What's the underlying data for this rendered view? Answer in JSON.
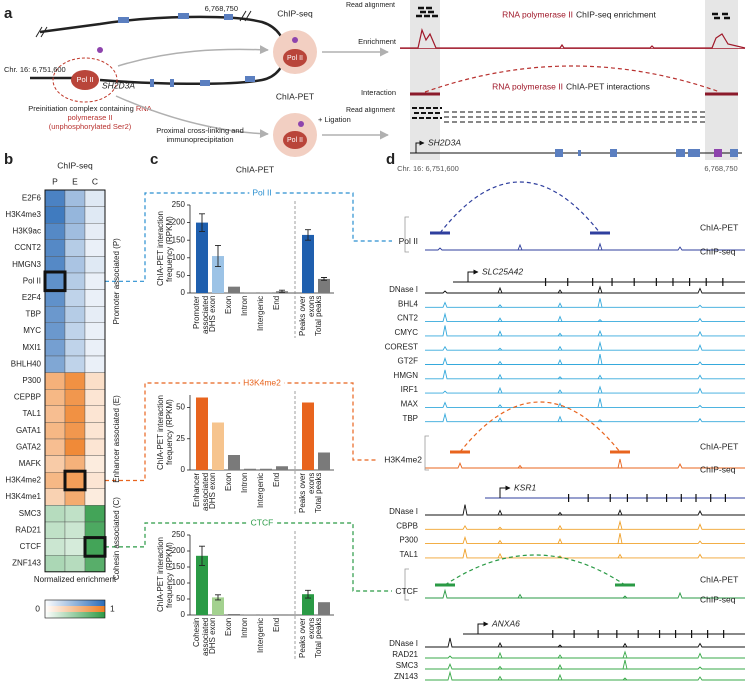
{
  "panel_labels": [
    "a",
    "b",
    "c",
    "d"
  ],
  "panel_a": {
    "coord_end": "6,768,750",
    "coord_start": "Chr. 16: 6,751,600",
    "pol2": "Pol II",
    "gene": "SH2D3A",
    "complex": "Preinitiation complex containing",
    "complex_red": "RNA polymerase II",
    "complex_red2": "(unphosphorylated Ser2)",
    "crosslink": "Proximal cross-linking and immunoprecipitation",
    "chipseq": "ChIP-seq",
    "chiapet": "ChIA-PET",
    "ligation": "+ Ligation",
    "pol2_chip": "Pol II",
    "pol2_chia": "Pol II",
    "track_labels": [
      "Read alignment",
      "Enrichment",
      "Interaction",
      "Read alignment"
    ],
    "chip_title_red": "RNA polymerase II",
    "chip_title": "ChIP-seq enrichment",
    "chia_title_red": "RNA polymerase II",
    "chia_title": "ChIA-PET interactions",
    "gene2": "SH2D3A",
    "coord_start2": "Chr. 16: 6,751,600",
    "coord_end2": "6,768,750"
  },
  "panel_c_title": "ChIA-PET",
  "chart_data": [
    {
      "type": "heatmap",
      "title": "ChIP-seq",
      "columns": [
        "P",
        "E",
        "C"
      ],
      "groups": [
        {
          "name": "Promoter associated (P)",
          "color": "#2b6cb8",
          "rows": [
            "E2F6",
            "H3K4me3",
            "H3K9ac",
            "CCNT2",
            "HMGN3",
            "Pol II",
            "E2F4",
            "TBP",
            "MYC",
            "MXI1",
            "BHLH40"
          ],
          "values": [
            [
              0.85,
              0.45,
              0.15
            ],
            [
              0.9,
              0.5,
              0.15
            ],
            [
              0.8,
              0.45,
              0.12
            ],
            [
              0.8,
              0.35,
              0.1
            ],
            [
              0.8,
              0.4,
              0.15
            ],
            [
              0.75,
              0.35,
              0.1
            ],
            [
              0.75,
              0.3,
              0.1
            ],
            [
              0.7,
              0.35,
              0.12
            ],
            [
              0.7,
              0.3,
              0.1
            ],
            [
              0.65,
              0.3,
              0.1
            ],
            [
              0.6,
              0.3,
              0.1
            ]
          ]
        },
        {
          "name": "Enhancer associated (E)",
          "color": "#ee7d22",
          "rows": [
            "P300",
            "CEPBP",
            "TAL1",
            "GATA1",
            "GATA2",
            "MAFK",
            "H3K4me2",
            "H3K4me1"
          ],
          "values": [
            [
              0.6,
              0.85,
              0.25
            ],
            [
              0.55,
              0.8,
              0.2
            ],
            [
              0.5,
              0.85,
              0.2
            ],
            [
              0.55,
              0.8,
              0.2
            ],
            [
              0.5,
              0.9,
              0.2
            ],
            [
              0.4,
              0.6,
              0.15
            ],
            [
              0.55,
              0.75,
              0.2
            ],
            [
              0.35,
              0.65,
              0.15
            ]
          ]
        },
        {
          "name": "Cohesin associated (C)",
          "color": "#2e9a45",
          "rows": [
            "SMC3",
            "RAD21",
            "CTCF",
            "ZNF143"
          ],
          "values": [
            [
              0.35,
              0.3,
              0.9
            ],
            [
              0.3,
              0.25,
              0.85
            ],
            [
              0.25,
              0.2,
              0.9
            ],
            [
              0.4,
              0.35,
              0.8
            ]
          ]
        }
      ],
      "legend_title": "Normalized enrichment",
      "legend_ticks": [
        0,
        1
      ]
    },
    {
      "type": "bar",
      "title": "Pol II",
      "title_color": "#2a8fd0",
      "ylabel": "ChIA-PET interaction frequency (RPKM)",
      "categories": [
        "Promoter associated",
        "DHS exon",
        "Exon",
        "Intron",
        "Intergenic",
        "End",
        "Peaks over exons",
        "Total peaks"
      ],
      "values": [
        200,
        105,
        18,
        1,
        1,
        5,
        165,
        40
      ],
      "errors": [
        25,
        30,
        null,
        null,
        null,
        3,
        15,
        4
      ],
      "colors": [
        "#1f5fae",
        "#9cc3e6",
        "#7a7a7a",
        "#7a7a7a",
        "#7a7a7a",
        "#7a7a7a",
        "#1f5fae",
        "#7a7a7a"
      ],
      "ylim": [
        0,
        250
      ],
      "yticks": [
        0,
        50,
        100,
        150,
        200,
        250
      ]
    },
    {
      "type": "bar",
      "title": "H3K4me2",
      "title_color": "#e8641e",
      "ylabel": "ChIA-PET interaction frequency (RPKM)",
      "categories": [
        "Enhancer associated",
        "DHS exon",
        "Exon",
        "Intron",
        "Intergenic",
        "End",
        "Peaks over exons",
        "Total peaks"
      ],
      "values": [
        58,
        38,
        12,
        1,
        1,
        3,
        54,
        14
      ],
      "colors": [
        "#e8641e",
        "#f6c48e",
        "#7a7a7a",
        "#7a7a7a",
        "#7a7a7a",
        "#7a7a7a",
        "#e8641e",
        "#7a7a7a"
      ],
      "ylim": [
        0,
        60
      ],
      "yticks": [
        0,
        25,
        50
      ]
    },
    {
      "type": "bar",
      "title": "CTCF",
      "title_color": "#2a9a45",
      "ylabel": "ChIA-PET interaction frequency (RPKM)",
      "categories": [
        "Cohesin associated",
        "DHS exon",
        "Exon",
        "Intron",
        "Intergenic",
        "End",
        "Peaks over exons",
        "Total peaks"
      ],
      "values": [
        185,
        55,
        3,
        1,
        1,
        2,
        65,
        40
      ],
      "errors": [
        30,
        8,
        null,
        null,
        null,
        null,
        12,
        null
      ],
      "colors": [
        "#2a9a45",
        "#a3d18f",
        "#7a7a7a",
        "#7a7a7a",
        "#7a7a7a",
        "#7a7a7a",
        "#2a9a45",
        "#7a7a7a"
      ],
      "ylim": [
        0,
        250
      ],
      "yticks": [
        0,
        50,
        100,
        150,
        200,
        250
      ]
    }
  ],
  "panel_d": {
    "sections": [
      {
        "chiapet": "ChIA-PET",
        "chipseq": "ChIP-seq",
        "factor": "Pol II",
        "gene": "SLC25A42",
        "tracks": [
          "DNase I",
          "BHL4",
          "CNT2",
          "CMYC",
          "COREST",
          "GT2F",
          "HMGN",
          "IRF1",
          "MAX",
          "TBP"
        ]
      },
      {
        "chiapet": "ChIA-PET",
        "chipseq": "ChIP-seq",
        "factor": "H3K4me2",
        "gene": "KSR1",
        "tracks": [
          "DNase I",
          "CBPB",
          "P300",
          "TAL1"
        ]
      },
      {
        "chiapet": "ChIA-PET",
        "chipseq": "ChIP-seq",
        "factor": "CTCF",
        "gene": "ANXA6",
        "tracks": [
          "DNase I",
          "RAD21",
          "SMC3",
          "ZN143"
        ]
      }
    ]
  }
}
